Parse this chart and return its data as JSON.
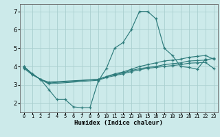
{
  "xlabel": "Humidex (Indice chaleur)",
  "x_all": [
    0,
    1,
    2,
    3,
    4,
    5,
    6,
    7,
    8,
    9,
    10,
    11,
    12,
    13,
    14,
    15,
    16,
    17,
    18,
    19,
    20,
    21,
    22,
    23
  ],
  "line_jagged_x": [
    0,
    1,
    2,
    3,
    4,
    5,
    6,
    7,
    8,
    9,
    10,
    11,
    12,
    13,
    14,
    15,
    16,
    17,
    18,
    19,
    20,
    21,
    22
  ],
  "line_jagged_y": [
    4.0,
    3.6,
    3.3,
    2.75,
    2.2,
    2.2,
    1.8,
    1.75,
    1.75,
    3.2,
    3.9,
    5.0,
    5.3,
    6.0,
    7.0,
    7.0,
    6.6,
    5.0,
    4.6,
    4.0,
    3.95,
    3.85,
    4.4
  ],
  "line_upper_x": [
    0,
    1,
    2,
    3,
    9,
    10,
    11,
    12,
    13,
    14,
    15,
    16,
    17,
    18,
    19,
    20,
    21,
    22,
    23
  ],
  "line_upper_y": [
    4.0,
    3.6,
    3.3,
    3.15,
    3.3,
    3.45,
    3.6,
    3.7,
    3.85,
    4.0,
    4.1,
    4.2,
    4.3,
    4.35,
    4.4,
    4.5,
    4.55,
    4.6,
    4.4
  ],
  "line_mid_x": [
    0,
    1,
    2,
    3,
    9,
    10,
    11,
    12,
    13,
    14,
    15,
    16,
    17,
    18,
    19,
    20,
    21,
    22,
    23
  ],
  "line_mid_y": [
    3.95,
    3.6,
    3.3,
    3.1,
    3.3,
    3.45,
    3.55,
    3.65,
    3.78,
    3.88,
    3.95,
    4.0,
    4.1,
    4.15,
    4.2,
    4.3,
    4.32,
    4.35,
    4.45
  ],
  "line_lower_x": [
    0,
    1,
    2,
    3,
    9,
    10,
    11,
    12,
    13,
    14,
    15,
    16,
    17,
    18,
    19,
    20,
    21,
    22,
    23
  ],
  "line_lower_y": [
    3.9,
    3.55,
    3.3,
    3.05,
    3.25,
    3.4,
    3.5,
    3.6,
    3.72,
    3.82,
    3.9,
    3.95,
    4.0,
    4.05,
    4.1,
    4.18,
    4.2,
    4.22,
    3.9
  ],
  "line_color": "#2d7b7b",
  "bg_color": "#cceaea",
  "grid_color": "#aacfcf",
  "ylim": [
    1.5,
    7.4
  ],
  "xlim": [
    -0.5,
    23.5
  ],
  "yticks": [
    2,
    3,
    4,
    5,
    6,
    7
  ],
  "xtick_labels": [
    "0",
    "1",
    "2",
    "3",
    "4",
    "5",
    "6",
    "7",
    "8",
    "9",
    "10",
    "11",
    "12",
    "13",
    "14",
    "15",
    "16",
    "17",
    "18",
    "19",
    "20",
    "21",
    "22",
    "23"
  ]
}
